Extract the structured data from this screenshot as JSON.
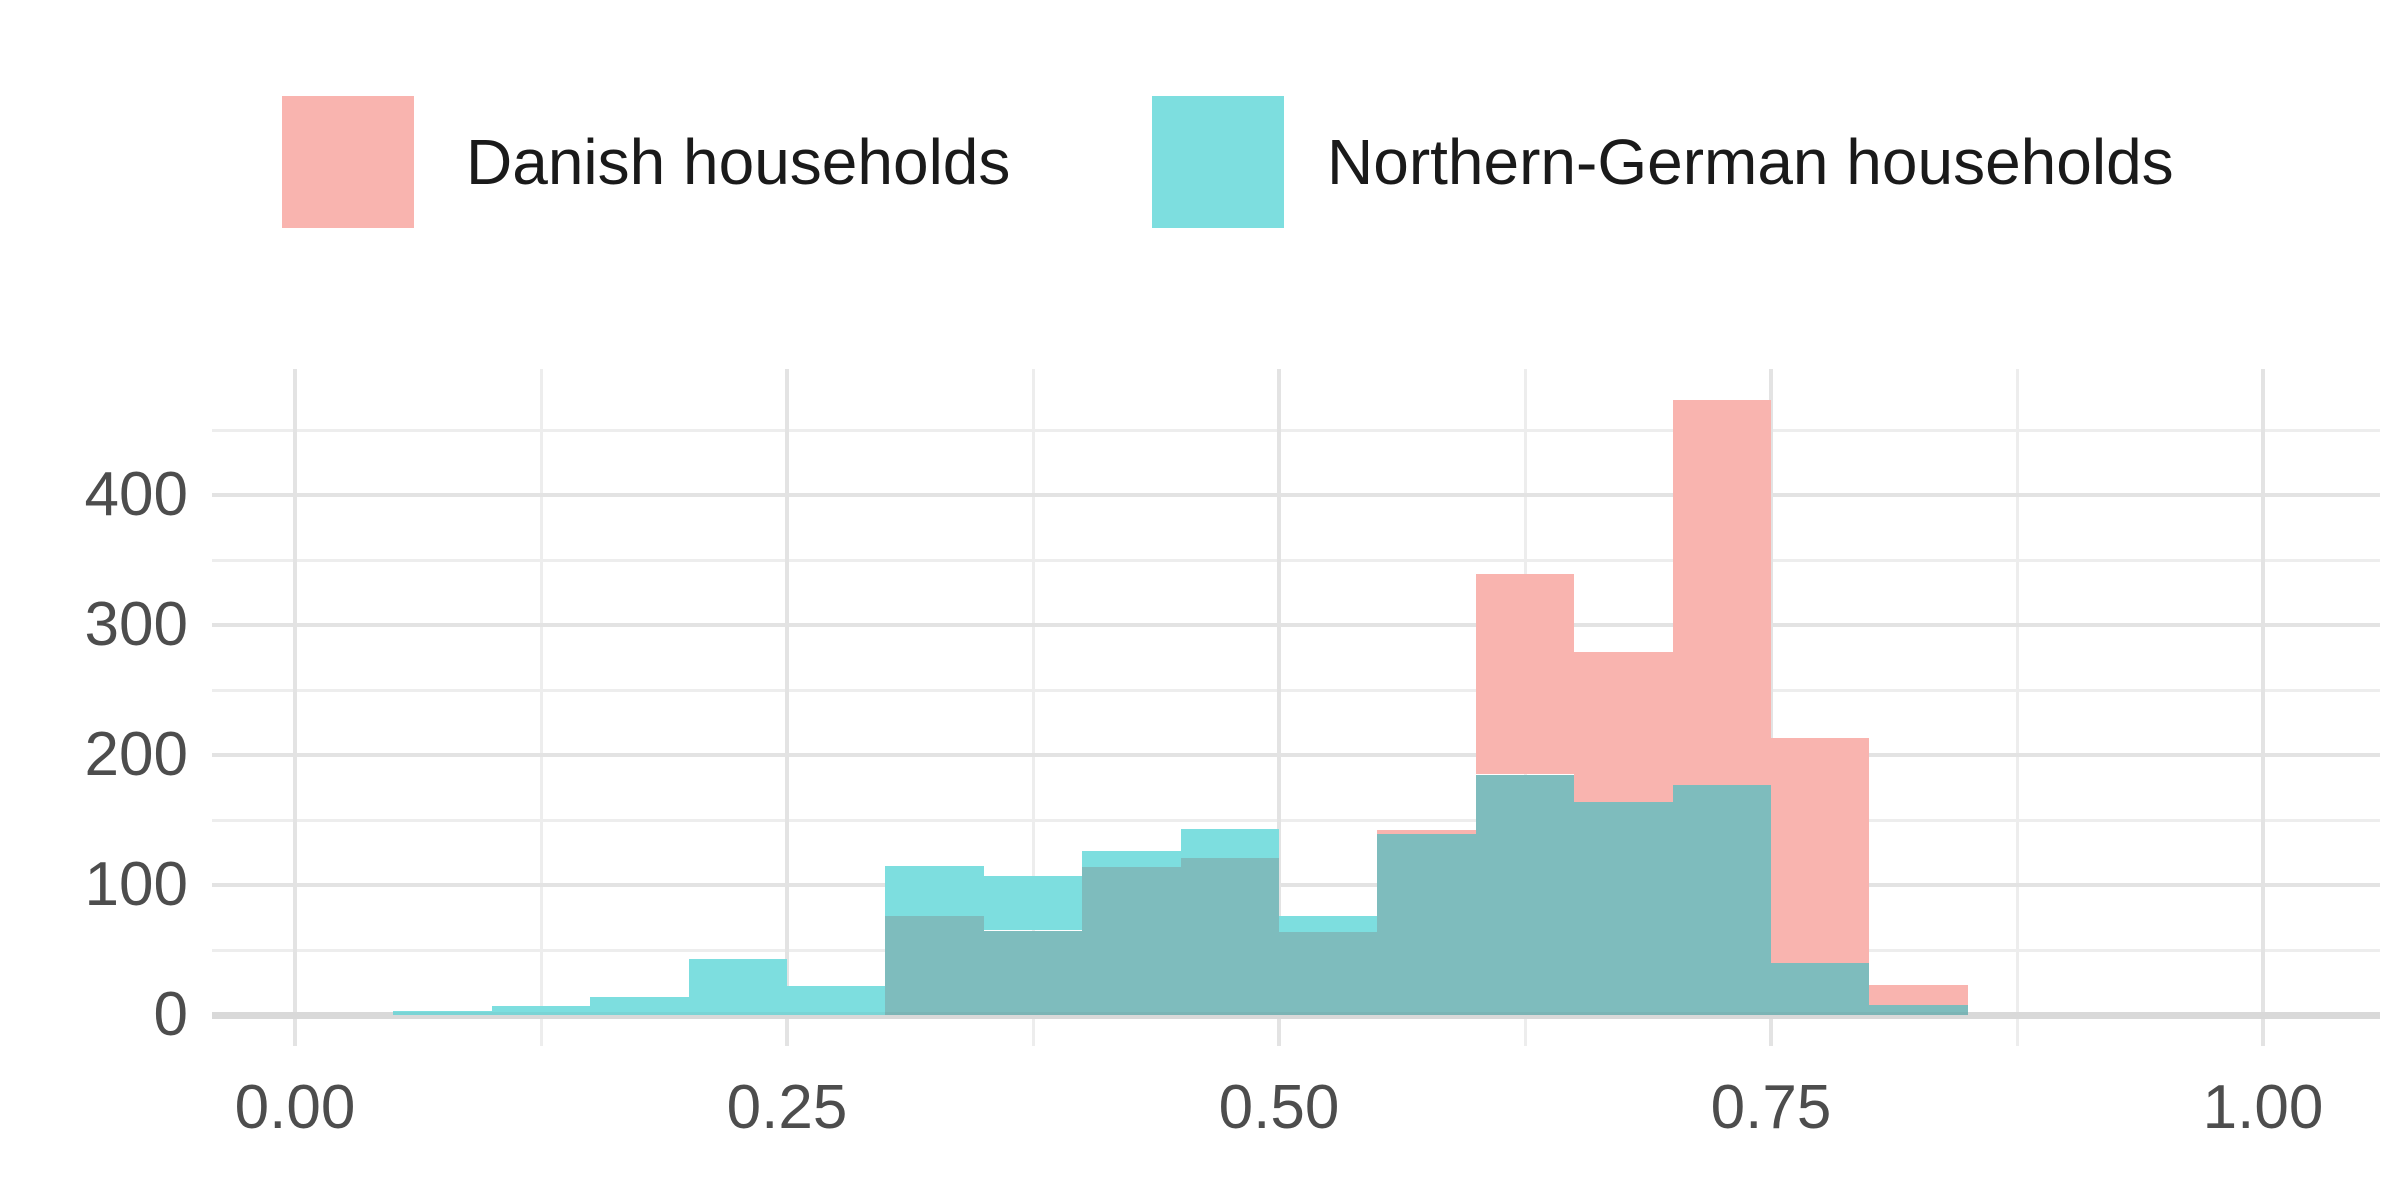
{
  "legend": {
    "items": [
      {
        "label": "Danish households",
        "color": "#F9B4AF"
      },
      {
        "label": "Northern-German households",
        "color": "#7DDEDF"
      }
    ]
  },
  "chart_data": {
    "type": "histogram",
    "subtype": "overlaid-translucent-histograms",
    "title": "",
    "xlabel": "",
    "ylabel": "",
    "bin_width": 0.05,
    "bin_starts": [
      0.05,
      0.1,
      0.15,
      0.2,
      0.25,
      0.3,
      0.35,
      0.4,
      0.45,
      0.5,
      0.55,
      0.6,
      0.65,
      0.7,
      0.75,
      0.8
    ],
    "series": [
      {
        "name": "Danish households",
        "color": "#F9B4AF",
        "values": [
          0,
          0,
          0,
          0,
          0,
          76,
          65,
          114,
          121,
          64,
          142,
          339,
          279,
          473,
          213,
          23
        ]
      },
      {
        "name": "Northern-German households",
        "color": "#7DDEDF",
        "values": [
          3,
          7,
          14,
          43,
          22,
          115,
          107,
          126,
          143,
          76,
          139,
          185,
          164,
          177,
          40,
          8
        ]
      }
    ],
    "overlap_color": "#7EBCBD",
    "x_ticks": [
      {
        "value": 0.0,
        "label": "0.00"
      },
      {
        "value": 0.25,
        "label": "0.25"
      },
      {
        "value": 0.5,
        "label": "0.50"
      },
      {
        "value": 0.75,
        "label": "0.75"
      },
      {
        "value": 1.0,
        "label": "1.00"
      }
    ],
    "x_minor_ticks": [
      0.125,
      0.375,
      0.625,
      0.875
    ],
    "y_ticks": [
      {
        "value": 0,
        "label": "0"
      },
      {
        "value": 100,
        "label": "100"
      },
      {
        "value": 200,
        "label": "200"
      },
      {
        "value": 300,
        "label": "300"
      },
      {
        "value": 400,
        "label": "400"
      }
    ],
    "y_minor_ticks": [
      50,
      150,
      250,
      350,
      450
    ],
    "xlim": [
      -0.042,
      1.059
    ],
    "ylim": [
      -24,
      497
    ],
    "grid": "on",
    "legend_position": "top",
    "colors": {
      "grid_major": "#E3E3E3",
      "grid_minor": "#EDEDED",
      "axis_text": "#4d4d4d",
      "background": "#ffffff"
    }
  }
}
